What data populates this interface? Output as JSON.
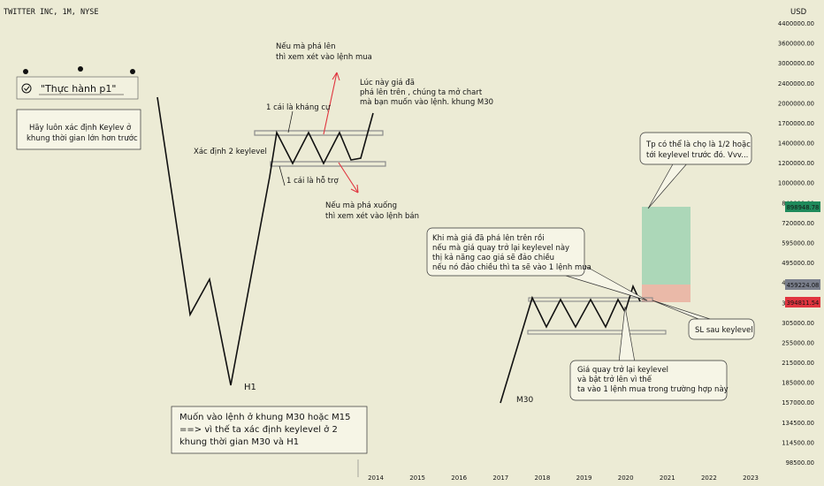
{
  "header": {
    "symbol": "TWITTER INC, 1M, NYSE",
    "currency": "USD"
  },
  "chart_data": {
    "type": "line",
    "price_axis": {
      "scale": "log",
      "ticks": [
        "4400000.00",
        "3600000.00",
        "3000000.00",
        "2400000.00",
        "2000000.00",
        "1700000.00",
        "1400000.00",
        "1200000.00",
        "1000000.00",
        "840000.00",
        "720000.00",
        "595000.00",
        "495000.00",
        "415000.00",
        "355000.00",
        "305000.00",
        "255000.00",
        "215000.00",
        "185000.00",
        "157000.00",
        "134500.00",
        "114500.00",
        "98500.00"
      ],
      "badges": [
        {
          "label": "898948.78",
          "color": "#1f8a5b"
        },
        {
          "label": "459224.08",
          "color": "#7a7f8c"
        },
        {
          "label": "394811.54",
          "color": "#e0353f"
        }
      ]
    },
    "time_axis": {
      "ticks": [
        "2014",
        "2015",
        "2016",
        "2017",
        "2018",
        "2019",
        "2020",
        "2021",
        "2022",
        "2023"
      ]
    }
  },
  "annotations": {
    "dots_box": {
      "title": "\"Thực hành p1\""
    },
    "keylevel_note": [
      "Hãy luôn xác định Keylev ở",
      "khung thời gian lớn hơn trước"
    ],
    "breakout_up": [
      "Nếu mà phá lên",
      "thì xem xét vào lệnh mua"
    ],
    "chart_hint": [
      "Lúc này giá đã",
      "phá lên trên , chúng ta mở chart",
      "mà bạn muốn vào lệnh. khung M30"
    ],
    "resistance": "1 cái là kháng cự",
    "two_keylevels": "Xác định 2 keylevel",
    "support": "1 cái là hỗ trợ",
    "breakout_down": [
      "Nếu mà phá xuống",
      "thì xem xét vào lệnh bán"
    ],
    "h1_label": "H1",
    "m30_label": "M30",
    "bottom_note": [
      "Muốn vào lệnh ở khung M30 hoặc M15",
      "==> vì thế ta xác định keylevel ở 2",
      "khung thời gian M30 và H1"
    ],
    "tp_note": [
      "Tp có thể là chọ là 1/2 hoặc",
      "tới keylevel trước đó. Vvv..."
    ],
    "retest_note": [
      "Khi mà giá đã phá lên trên rồi",
      "nếu mà giá quay trở lại keylevel này",
      "thị kả năng cao  giá sẽ đảo chiều",
      "nếu nó đảo chiều thì ta sẽ vào 1 lệnh mua"
    ],
    "sl_note": "SL sau keylevel",
    "bounce_note": [
      "Giá quay trở lại keylevel",
      "và bật trở lên vì thế",
      "ta vào 1 lệnh mua trong trường hợp này"
    ]
  },
  "colors": {
    "background": "#ecebd5",
    "tp_zone": "#a9d6b6",
    "sl_zone": "#eab6a5",
    "arrow": "#e0353f",
    "keylevel": "#9a9a9a"
  }
}
